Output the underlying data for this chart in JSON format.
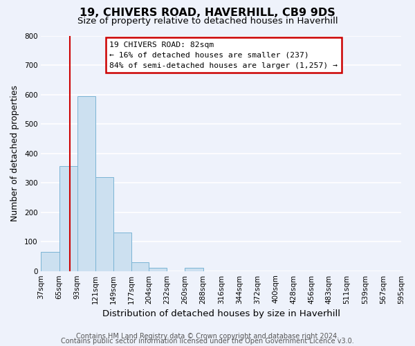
{
  "title": "19, CHIVERS ROAD, HAVERHILL, CB9 9DS",
  "subtitle": "Size of property relative to detached houses in Haverhill",
  "xlabel": "Distribution of detached houses by size in Haverhill",
  "ylabel": "Number of detached properties",
  "bins": [
    37,
    65,
    93,
    121,
    149,
    177,
    204,
    232,
    260,
    288,
    316,
    344,
    372,
    400,
    428,
    456,
    483,
    511,
    539,
    567,
    595
  ],
  "bin_labels": [
    "37sqm",
    "65sqm",
    "93sqm",
    "121sqm",
    "149sqm",
    "177sqm",
    "204sqm",
    "232sqm",
    "260sqm",
    "288sqm",
    "316sqm",
    "344sqm",
    "372sqm",
    "400sqm",
    "428sqm",
    "456sqm",
    "483sqm",
    "511sqm",
    "539sqm",
    "567sqm",
    "595sqm"
  ],
  "bar_heights": [
    65,
    357,
    595,
    318,
    130,
    30,
    10,
    0,
    10,
    0,
    0,
    0,
    0,
    0,
    0,
    0,
    0,
    0,
    0,
    0
  ],
  "bar_color": "#cce0f0",
  "bar_edge_color": "#7ab4d4",
  "vline_x": 82,
  "vline_color": "#cc0000",
  "ylim": [
    0,
    800
  ],
  "yticks": [
    0,
    100,
    200,
    300,
    400,
    500,
    600,
    700,
    800
  ],
  "annotation_title": "19 CHIVERS ROAD: 82sqm",
  "annotation_line1": "← 16% of detached houses are smaller (237)",
  "annotation_line2": "84% of semi-detached houses are larger (1,257) →",
  "footer1": "Contains HM Land Registry data © Crown copyright and database right 2024.",
  "footer2": "Contains public sector information licensed under the Open Government Licence v3.0.",
  "bg_color": "#eef2fb",
  "grid_color": "#ffffff",
  "title_fontsize": 11.5,
  "subtitle_fontsize": 9.5,
  "axis_label_fontsize": 9,
  "tick_fontsize": 7.5,
  "footer_fontsize": 7
}
